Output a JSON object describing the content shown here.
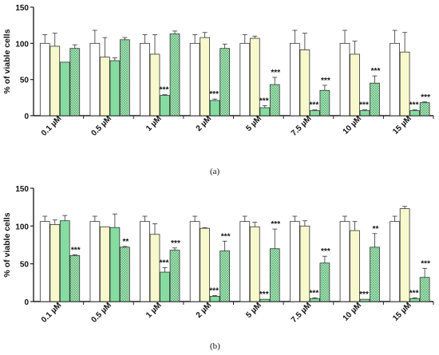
{
  "panel_labels": [
    "(a)",
    "(b)"
  ],
  "colors": {
    "white": "#ffffff",
    "light_yellow": "#f7f9cc",
    "green": "#86dca0",
    "green_hatched": "#bfeec9",
    "hatch": "#4aa868",
    "axis": "#222222"
  },
  "chart_data": [
    {
      "type": "bar",
      "panel": "(a)",
      "title": "",
      "ylabel": "% of viable cells",
      "xlabel": "",
      "ylim": [
        0,
        150
      ],
      "yticks": [
        0,
        50,
        100,
        150
      ],
      "categories": [
        "0.1 µM",
        "0.5 µM",
        "1 µM",
        "2 µM",
        "5 µM",
        "7.5 µM",
        "10 µM",
        "15 µM"
      ],
      "series": [
        {
          "style": "white",
          "values": [
            100,
            100,
            100,
            100,
            100,
            100,
            100,
            100
          ],
          "errors": [
            12,
            18,
            12,
            12,
            12,
            18,
            18,
            18
          ]
        },
        {
          "style": "light_yellow",
          "values": [
            96,
            81,
            85,
            108,
            107,
            91,
            85,
            88
          ],
          "errors": [
            18,
            27,
            27,
            7,
            3,
            23,
            18,
            27
          ]
        },
        {
          "style": "green",
          "values": [
            74,
            76,
            28,
            21,
            11,
            7,
            7,
            7
          ],
          "errors": [
            0,
            4,
            1,
            2,
            3,
            1,
            1,
            1
          ]
        },
        {
          "style": "green_hatched",
          "values": [
            93,
            105,
            113,
            93,
            43,
            35,
            45,
            18
          ],
          "errors": [
            5,
            3,
            4,
            6,
            10,
            7,
            10,
            1
          ]
        }
      ],
      "annotations": [
        [
          "",
          "",
          "",
          ""
        ],
        [
          "",
          "",
          "",
          ""
        ],
        [
          "",
          "",
          "***",
          ""
        ],
        [
          "",
          "",
          "***",
          ""
        ],
        [
          "",
          "",
          "***",
          "***"
        ],
        [
          "",
          "",
          "***",
          "***"
        ],
        [
          "",
          "",
          "***",
          "***"
        ],
        [
          "",
          "",
          "***",
          "***"
        ]
      ]
    },
    {
      "type": "bar",
      "panel": "(b)",
      "title": "",
      "ylabel": "% of viable cells",
      "xlabel": "",
      "ylim": [
        0,
        150
      ],
      "yticks": [
        0,
        50,
        100,
        150
      ],
      "categories": [
        "0.1 µM",
        "0.5 µM",
        "1 µM",
        "2 µM",
        "5 µM",
        "7.5 µM",
        "10 µM",
        "15 µM"
      ],
      "series": [
        {
          "style": "white",
          "values": [
            106,
            106,
            106,
            106,
            106,
            106,
            106,
            106
          ],
          "errors": [
            7,
            7,
            7,
            7,
            7,
            7,
            7,
            7
          ]
        },
        {
          "style": "light_yellow",
          "values": [
            102,
            99,
            89,
            97,
            99,
            100,
            94,
            123
          ],
          "errors": [
            6,
            0,
            14,
            1,
            6,
            7,
            12,
            3
          ]
        },
        {
          "style": "green",
          "values": [
            107,
            98,
            39,
            7,
            3,
            4,
            3,
            4
          ],
          "errors": [
            7,
            18,
            6,
            1,
            0,
            1,
            0,
            1
          ]
        },
        {
          "style": "green_hatched",
          "values": [
            61,
            72,
            68,
            67,
            70,
            51,
            72,
            32
          ],
          "errors": [
            1,
            1,
            3,
            13,
            26,
            9,
            18,
            12
          ]
        }
      ],
      "annotations": [
        [
          "",
          "",
          "",
          "***"
        ],
        [
          "",
          "",
          "",
          "**"
        ],
        [
          "",
          "",
          "***",
          "***"
        ],
        [
          "",
          "",
          "***",
          "***"
        ],
        [
          "",
          "",
          "***",
          "***"
        ],
        [
          "",
          "",
          "***",
          "***"
        ],
        [
          "",
          "",
          "***",
          "**"
        ],
        [
          "",
          "",
          "***",
          "***"
        ]
      ]
    }
  ]
}
